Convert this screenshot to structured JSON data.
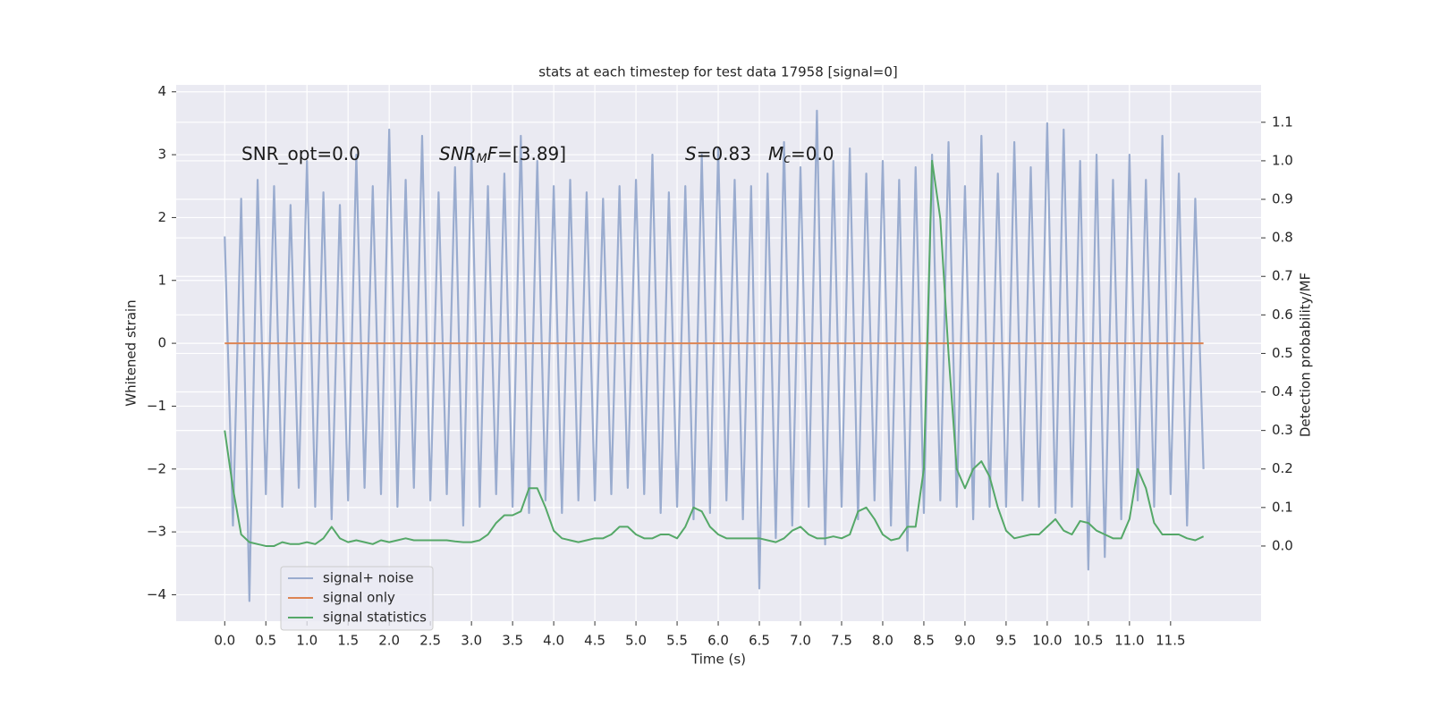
{
  "chart_data": {
    "type": "line",
    "title": "stats at each timestep for test data 17958 [signal=0]",
    "xlabel": "Time (s)",
    "ylabel": "Whitened strain",
    "y2label": "Detection probability/MF",
    "annotations": [
      {
        "base": "SNR_opt=0.0"
      },
      {
        "base": "SNR",
        "sub": "M",
        "rest": "F=[3.89]"
      },
      {
        "base": "S",
        "rest": "=0.83"
      },
      {
        "base": "M",
        "sub": "c",
        "rest": "=0.0"
      }
    ],
    "x": [
      0.0,
      0.1,
      0.2,
      0.3,
      0.4,
      0.5,
      0.6,
      0.7,
      0.8,
      0.9,
      1.0,
      1.1,
      1.2,
      1.3,
      1.4,
      1.5,
      1.6,
      1.7,
      1.8,
      1.9,
      2.0,
      2.1,
      2.2,
      2.3,
      2.4,
      2.5,
      2.6,
      2.7,
      2.8,
      2.9,
      3.0,
      3.1,
      3.2,
      3.3,
      3.4,
      3.5,
      3.6,
      3.7,
      3.8,
      3.9,
      4.0,
      4.1,
      4.2,
      4.3,
      4.4,
      4.5,
      4.6,
      4.7,
      4.8,
      4.9,
      5.0,
      5.1,
      5.2,
      5.3,
      5.4,
      5.5,
      5.6,
      5.7,
      5.8,
      5.9,
      6.0,
      6.1,
      6.2,
      6.3,
      6.4,
      6.5,
      6.6,
      6.7,
      6.8,
      6.9,
      7.0,
      7.1,
      7.2,
      7.3,
      7.4,
      7.5,
      7.6,
      7.7,
      7.8,
      7.9,
      8.0,
      8.1,
      8.2,
      8.3,
      8.4,
      8.5,
      8.6,
      8.7,
      8.8,
      8.9,
      9.0,
      9.1,
      9.2,
      9.3,
      9.4,
      9.5,
      9.6,
      9.7,
      9.8,
      9.9,
      10.0,
      10.1,
      10.2,
      10.3,
      10.4,
      10.5,
      10.6,
      10.7,
      10.8,
      10.9,
      11.0,
      11.1,
      11.2,
      11.3,
      11.4,
      11.5,
      11.6,
      11.7,
      11.8,
      11.9
    ],
    "series": [
      {
        "name": "signal+ noise",
        "color": "#9aaccf",
        "values": [
          1.7,
          -2.9,
          2.3,
          -4.1,
          2.6,
          -2.4,
          2.5,
          -2.6,
          2.2,
          -2.3,
          2.9,
          -2.6,
          2.4,
          -2.8,
          2.2,
          -2.5,
          3.0,
          -2.3,
          2.5,
          -2.4,
          3.4,
          -2.6,
          2.6,
          -2.3,
          3.3,
          -2.5,
          2.4,
          -2.4,
          2.8,
          -2.9,
          3.1,
          -2.6,
          2.5,
          -2.4,
          2.7,
          -2.6,
          3.3,
          -2.7,
          2.9,
          -2.5,
          2.5,
          -2.7,
          2.6,
          -2.5,
          2.4,
          -2.5,
          2.3,
          -2.4,
          2.5,
          -2.3,
          2.6,
          -2.4,
          3.0,
          -2.7,
          2.4,
          -2.6,
          2.5,
          -2.8,
          3.0,
          -2.7,
          3.1,
          -2.5,
          2.6,
          -2.8,
          2.5,
          -3.9,
          2.7,
          -3.1,
          3.2,
          -2.9,
          2.8,
          -2.6,
          3.7,
          -3.2,
          2.9,
          -2.6,
          3.1,
          -2.8,
          2.7,
          -2.5,
          2.9,
          -2.9,
          2.6,
          -3.3,
          2.8,
          -2.7,
          3.0,
          -2.5,
          3.2,
          -2.6,
          2.5,
          -2.8,
          3.3,
          -2.6,
          2.7,
          -2.6,
          3.2,
          -2.5,
          2.8,
          -2.6,
          3.5,
          -2.7,
          3.4,
          -2.6,
          2.9,
          -3.6,
          3.0,
          -3.4,
          2.6,
          -2.8,
          3.0,
          -2.5,
          2.6,
          -2.6,
          3.3,
          -2.4,
          2.7,
          -2.9,
          2.3,
          -2.0
        ]
      },
      {
        "name": "signal only",
        "color": "#dd8452",
        "values": [
          0,
          0,
          0,
          0,
          0,
          0,
          0,
          0,
          0,
          0,
          0,
          0,
          0,
          0,
          0,
          0,
          0,
          0,
          0,
          0,
          0,
          0,
          0,
          0,
          0,
          0,
          0,
          0,
          0,
          0,
          0,
          0,
          0,
          0,
          0,
          0,
          0,
          0,
          0,
          0,
          0,
          0,
          0,
          0,
          0,
          0,
          0,
          0,
          0,
          0,
          0,
          0,
          0,
          0,
          0,
          0,
          0,
          0,
          0,
          0,
          0,
          0,
          0,
          0,
          0,
          0,
          0,
          0,
          0,
          0,
          0,
          0,
          0,
          0,
          0,
          0,
          0,
          0,
          0,
          0,
          0,
          0,
          0,
          0,
          0,
          0,
          0,
          0,
          0,
          0,
          0,
          0,
          0,
          0,
          0,
          0,
          0,
          0,
          0,
          0,
          0,
          0,
          0,
          0,
          0,
          0,
          0,
          0,
          0,
          0,
          0,
          0,
          0,
          0,
          0,
          0,
          0,
          0,
          0,
          0
        ]
      },
      {
        "name": "signal statistics",
        "color": "#55a868",
        "axis": "y2",
        "values": [
          0.3,
          0.15,
          0.03,
          0.01,
          0.005,
          0.0,
          0.0,
          0.01,
          0.005,
          0.005,
          0.01,
          0.005,
          0.02,
          0.05,
          0.02,
          0.01,
          0.015,
          0.01,
          0.005,
          0.015,
          0.01,
          0.015,
          0.02,
          0.015,
          0.015,
          0.015,
          0.015,
          0.015,
          0.012,
          0.01,
          0.01,
          0.015,
          0.03,
          0.06,
          0.08,
          0.08,
          0.09,
          0.15,
          0.15,
          0.1,
          0.04,
          0.02,
          0.015,
          0.01,
          0.015,
          0.02,
          0.02,
          0.03,
          0.05,
          0.05,
          0.03,
          0.02,
          0.02,
          0.03,
          0.03,
          0.02,
          0.05,
          0.1,
          0.09,
          0.05,
          0.03,
          0.02,
          0.02,
          0.02,
          0.02,
          0.02,
          0.015,
          0.01,
          0.02,
          0.04,
          0.05,
          0.03,
          0.02,
          0.02,
          0.025,
          0.02,
          0.03,
          0.09,
          0.1,
          0.07,
          0.03,
          0.015,
          0.02,
          0.05,
          0.05,
          0.2,
          1.0,
          0.85,
          0.5,
          0.2,
          0.15,
          0.2,
          0.22,
          0.18,
          0.1,
          0.04,
          0.02,
          0.025,
          0.03,
          0.03,
          0.05,
          0.07,
          0.04,
          0.03,
          0.065,
          0.06,
          0.04,
          0.03,
          0.02,
          0.02,
          0.07,
          0.2,
          0.15,
          0.06,
          0.03,
          0.03,
          0.03,
          0.02,
          0.015,
          0.025
        ]
      }
    ],
    "xlim": [
      -0.59,
      12.6
    ],
    "xticks": [
      {
        "value": 0,
        "label": "0.0"
      },
      0.5,
      {
        "value": 1,
        "label": "1.0"
      },
      1.5,
      {
        "value": 2,
        "label": "2.0"
      },
      2.5,
      {
        "value": 3,
        "label": "3.0"
      },
      3.5,
      {
        "value": 4,
        "label": "4.0"
      },
      4.5,
      {
        "value": 5,
        "label": "5.0"
      },
      5.5,
      {
        "value": 6,
        "label": "6.0"
      },
      6.5,
      {
        "value": 7,
        "label": "7.0"
      },
      7.5,
      {
        "value": 8,
        "label": "8.0"
      },
      8.5,
      {
        "value": 9,
        "label": "9.0"
      },
      9.5,
      {
        "value": 10,
        "label": "10.0"
      },
      10.5,
      {
        "value": 11,
        "label": "11.0"
      },
      11.5
    ],
    "ylim": [
      -4.42,
      4.11
    ],
    "yticks": [
      {
        "value": -4,
        "label": "−4"
      },
      {
        "value": -3,
        "label": "−3"
      },
      {
        "value": -2,
        "label": "−2"
      },
      {
        "value": -1,
        "label": "−1"
      },
      0,
      1,
      2,
      3,
      4
    ],
    "y2lim": [
      -0.195,
      1.197
    ],
    "y2ticks": [
      {
        "value": 0,
        "label": "0.0"
      },
      0.1,
      0.2,
      0.3,
      0.4,
      0.5,
      0.6,
      0.7,
      0.8,
      0.9,
      {
        "value": 1,
        "label": "1.0"
      },
      1.1
    ],
    "grid": true,
    "legend": "lower left",
    "background": "#eaeaf2"
  }
}
